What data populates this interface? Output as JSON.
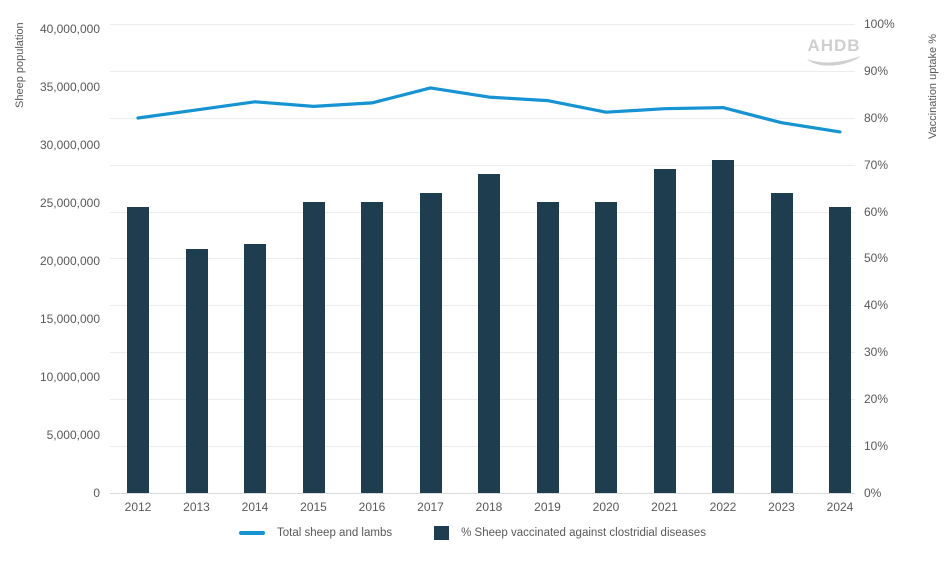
{
  "logo": {
    "text": "AHDB"
  },
  "legend": {
    "line_label": "Total sheep and lambs",
    "bar_label": "% Sheep vaccinated against clostridial diseases"
  },
  "chart_data": {
    "type": "combo-line-bar",
    "categories": [
      "2012",
      "2013",
      "2014",
      "2015",
      "2016",
      "2017",
      "2018",
      "2019",
      "2020",
      "2021",
      "2022",
      "2023",
      "2024"
    ],
    "series": [
      {
        "name": "Total sheep and lambs",
        "type": "line",
        "axis": "left",
        "color": "#1593d2",
        "values": [
          32300000,
          33000000,
          33700000,
          33300000,
          33600000,
          34900000,
          34100000,
          33800000,
          32800000,
          33100000,
          33200000,
          31900000,
          31100000
        ]
      },
      {
        "name": "% Sheep vaccinated against clostridial diseases",
        "type": "bar",
        "axis": "right",
        "color": "#1e3e4f",
        "values": [
          61,
          52,
          53,
          62,
          62,
          64,
          68,
          62,
          62,
          69,
          71,
          64,
          61
        ]
      }
    ],
    "left_axis": {
      "title": "Sheep population",
      "min": 0,
      "max": 40000000,
      "tick_step": 5000000,
      "tick_labels": [
        "0",
        "5,000,000",
        "10,000,000",
        "15,000,000",
        "20,000,000",
        "25,000,000",
        "30,000,000",
        "35,000,000",
        "40,000,000"
      ]
    },
    "right_axis": {
      "title": "Vaccination uptake %",
      "min": 0,
      "max": 100,
      "tick_step": 10,
      "tick_labels": [
        "0%",
        "10%",
        "20%",
        "30%",
        "40%",
        "50%",
        "60%",
        "70%",
        "80%",
        "90%",
        "100%"
      ]
    },
    "grid": {
      "horizontal": true,
      "at": "right-axis 10% intervals"
    },
    "legend_position": "bottom",
    "colors": {
      "grid": "#ececec",
      "baseline": "#d9d9d9",
      "text": "#595959",
      "logo": "#cfcfcf"
    }
  }
}
